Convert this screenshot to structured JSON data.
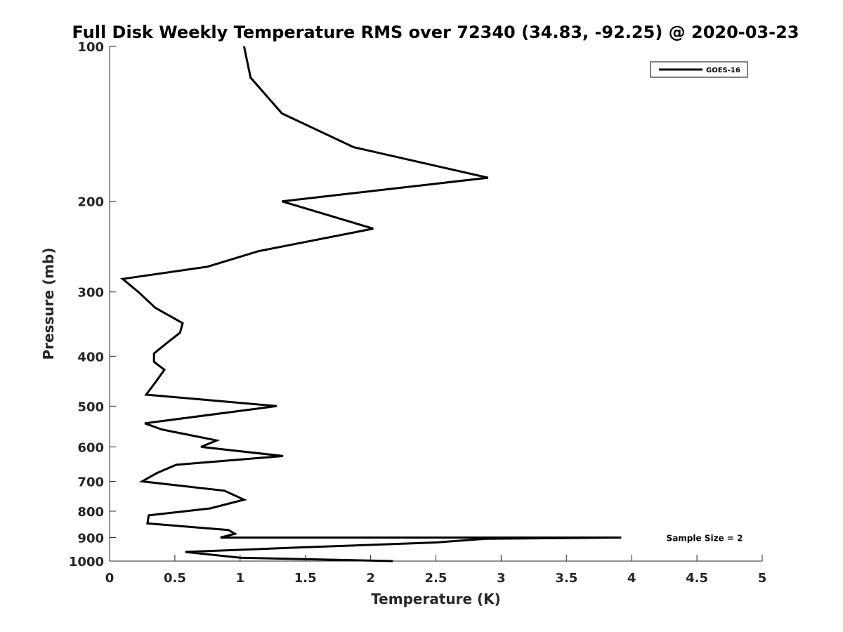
{
  "chart_data": {
    "type": "line",
    "title": "Full Disk Weekly Temperature RMS over 72340 (34.83, -92.25) @ 2020-03-23",
    "xlabel": "Temperature (K)",
    "ylabel": "Pressure (mb)",
    "xlim": [
      0,
      5
    ],
    "ylim": [
      100,
      1000
    ],
    "y_scale": "log",
    "y_reversed": true,
    "x_ticks": [
      "0",
      "0.5",
      "1",
      "1.5",
      "2",
      "2.5",
      "3",
      "3.5",
      "4",
      "4.5",
      "5"
    ],
    "y_ticks": [
      "100",
      "200",
      "300",
      "400",
      "500",
      "600",
      "700",
      "800",
      "900",
      "1000"
    ],
    "grid": false,
    "legend": {
      "position": "top-right",
      "entries": [
        "GOES-16"
      ]
    },
    "annotation": "Sample Size = 2",
    "line_color": "#000000",
    "series": [
      {
        "name": "GOES-16",
        "x": [
          1.03,
          1.08,
          1.32,
          1.87,
          2.9,
          1.32,
          2.02,
          1.14,
          0.75,
          0.1,
          0.22,
          0.35,
          0.56,
          0.54,
          0.45,
          0.34,
          0.34,
          0.42,
          0.35,
          0.28,
          1.28,
          0.27,
          0.4,
          0.82,
          0.7,
          1.33,
          0.51,
          0.36,
          0.25,
          0.88,
          1.03,
          0.77,
          0.3,
          0.29,
          0.91,
          0.96,
          0.85,
          3.92,
          2.88,
          2.5,
          1.5,
          0.58,
          1.0,
          2.17
        ],
        "y": [
          100,
          115,
          135,
          157,
          180,
          200,
          226,
          250,
          268,
          283,
          300,
          322,
          345,
          360,
          375,
          395,
          410,
          425,
          450,
          475,
          500,
          540,
          555,
          583,
          600,
          625,
          650,
          675,
          700,
          730,
          760,
          790,
          815,
          845,
          870,
          885,
          900,
          900,
          905,
          920,
          940,
          960,
          985,
          1000
        ]
      }
    ]
  }
}
